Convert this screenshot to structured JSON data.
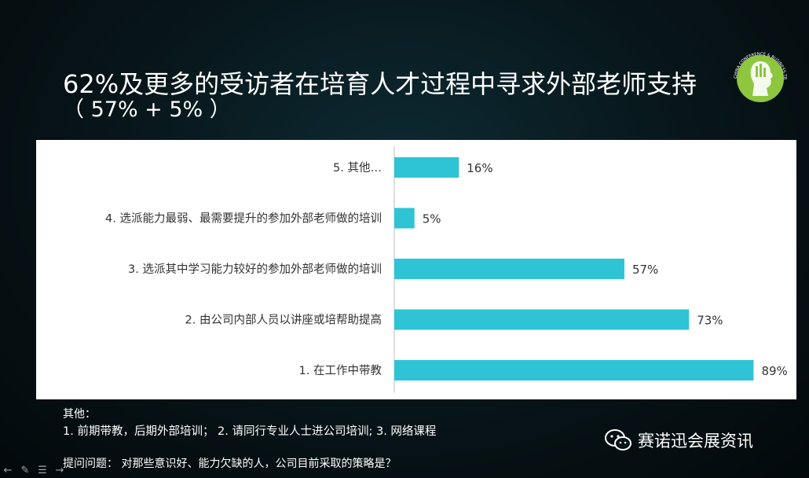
{
  "title": "62%及更多的受访者在培育人才过程中寻求外部老师支持",
  "subtitle": "（ 57% + 5% ）",
  "logo": {
    "text": "CHINA CONFERENCE & BUSINESS TRAVEL FORUM & FAIR"
  },
  "colors": {
    "bar": "#2ec4d6",
    "background": "#071418",
    "panel": "#ffffff"
  },
  "chart_data": {
    "type": "bar",
    "orientation": "horizontal",
    "categories": [
      "5.  其他…",
      "4. 选派能力最弱、最需要提升的参加外部老师做的培训",
      "3. 选派其中学习能力较好的参加外部老师做的培训",
      "2. 由公司内部人员以讲座或培帮助提高",
      "1.  在工作中带教"
    ],
    "values": [
      16,
      5,
      57,
      73,
      89
    ],
    "value_labels": [
      "16%",
      "5%",
      "57%",
      "73%",
      "89%"
    ],
    "xlim": [
      0,
      100
    ],
    "grid": false
  },
  "notes": {
    "heading": "其他：",
    "items": "1.   前期带教，后期外部培训； 2.  请同行专业人士进公司培训;    3. 网络课程"
  },
  "question": "提问问题：  对那些意识好、能力欠缺的人，公司目前采取的策略是？",
  "wechat": {
    "icon": "wechat-icon",
    "text": "赛诺迅会展资讯"
  },
  "toolbar": {
    "icons": [
      "arrow-left-icon",
      "pen-icon",
      "menu-icon",
      "arrow-right-icon"
    ]
  }
}
